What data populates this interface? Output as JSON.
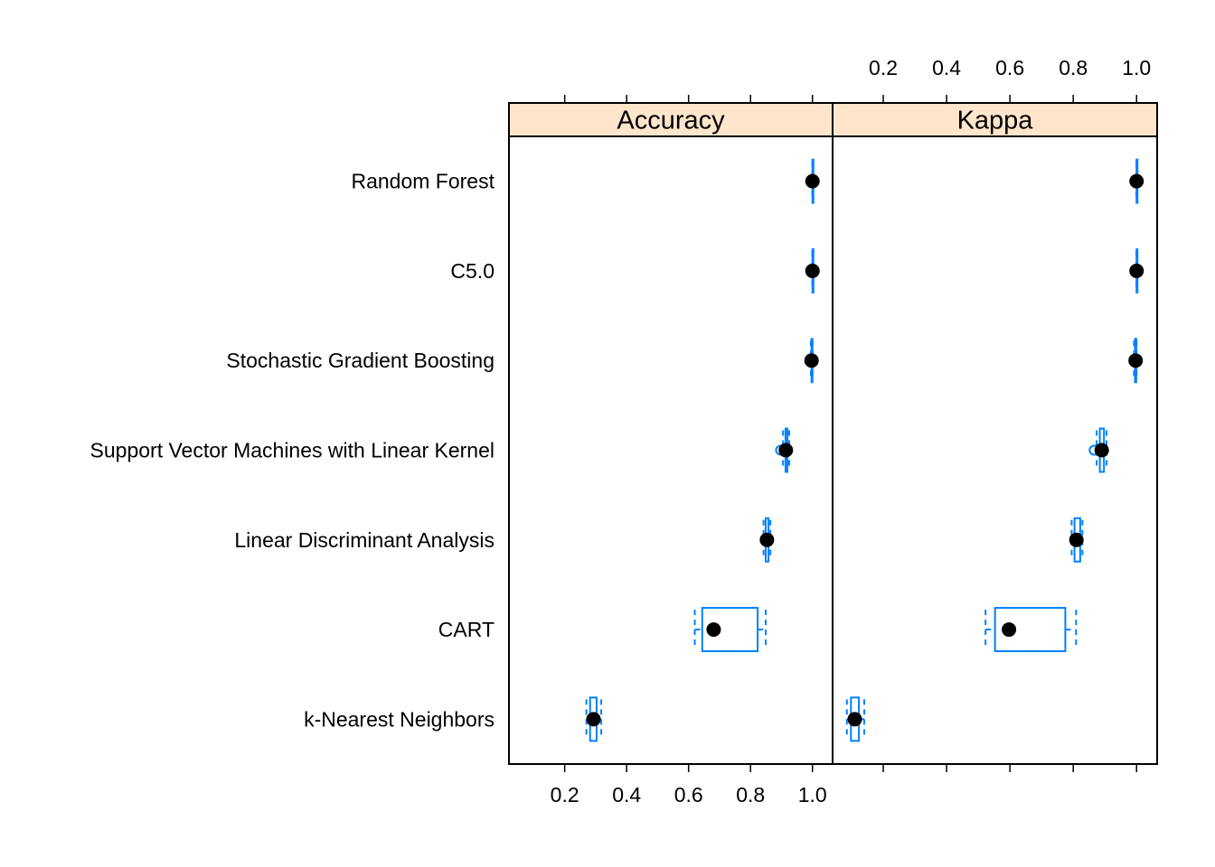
{
  "chart_data": {
    "type": "box",
    "panels": [
      {
        "name": "Accuracy",
        "strip_label": "Accuracy",
        "xlim": [
          0.02,
          1.065
        ]
      },
      {
        "name": "Kappa",
        "strip_label": "Kappa",
        "xlim": [
          0.04,
          1.065
        ]
      }
    ],
    "tick_values": [
      0.2,
      0.4,
      0.6,
      0.8,
      1.0
    ],
    "tick_labels": [
      "0.2",
      "0.4",
      "0.6",
      "0.8",
      "1.0"
    ],
    "categories": [
      "Random Forest",
      "C5.0",
      "Stochastic Gradient Boosting",
      "Support Vector Machines with Linear Kernel",
      "Linear Discriminant Analysis",
      "CART",
      "k-Nearest Neighbors"
    ],
    "series": [
      {
        "name": "Accuracy",
        "boxes": [
          {
            "min": 1.0,
            "q1": 1.0,
            "median": 1.0,
            "q3": 1.0,
            "max": 1.0,
            "outliers": []
          },
          {
            "min": 1.0,
            "q1": 1.0,
            "median": 1.0,
            "q3": 1.0,
            "max": 1.0,
            "outliers": []
          },
          {
            "min": 0.995,
            "q1": 0.997,
            "median": 0.997,
            "q3": 0.999,
            "max": 1.0,
            "outliers": []
          },
          {
            "min": 0.905,
            "q1": 0.913,
            "median": 0.914,
            "q3": 0.919,
            "max": 0.925,
            "outliers": [
              0.897
            ]
          },
          {
            "min": 0.842,
            "q1": 0.849,
            "median": 0.853,
            "q3": 0.858,
            "max": 0.864,
            "outliers": []
          },
          {
            "min": 0.62,
            "q1": 0.644,
            "median": 0.681,
            "q3": 0.823,
            "max": 0.849,
            "outliers": []
          },
          {
            "min": 0.27,
            "q1": 0.282,
            "median": 0.293,
            "q3": 0.303,
            "max": 0.318,
            "outliers": []
          }
        ]
      },
      {
        "name": "Kappa",
        "boxes": [
          {
            "min": 1.0,
            "q1": 1.0,
            "median": 1.0,
            "q3": 1.0,
            "max": 1.0,
            "outliers": []
          },
          {
            "min": 1.0,
            "q1": 1.0,
            "median": 1.0,
            "q3": 1.0,
            "max": 1.0,
            "outliers": []
          },
          {
            "min": 0.992,
            "q1": 0.995,
            "median": 0.997,
            "q3": 0.999,
            "max": 1.0,
            "outliers": []
          },
          {
            "min": 0.874,
            "q1": 0.884,
            "median": 0.89,
            "q3": 0.897,
            "max": 0.905,
            "outliers": [
              0.866
            ]
          },
          {
            "min": 0.795,
            "q1": 0.804,
            "median": 0.81,
            "q3": 0.822,
            "max": 0.829,
            "outliers": []
          },
          {
            "min": 0.523,
            "q1": 0.553,
            "median": 0.597,
            "q3": 0.775,
            "max": 0.809,
            "outliers": []
          },
          {
            "min": 0.085,
            "q1": 0.098,
            "median": 0.11,
            "q3": 0.123,
            "max": 0.14,
            "outliers": []
          }
        ]
      }
    ],
    "colors": {
      "box": "#0080ff",
      "median_dot": "#000000",
      "strip": "#ffe5cc",
      "frame": "#000000"
    },
    "grid": false,
    "legend": "none"
  }
}
